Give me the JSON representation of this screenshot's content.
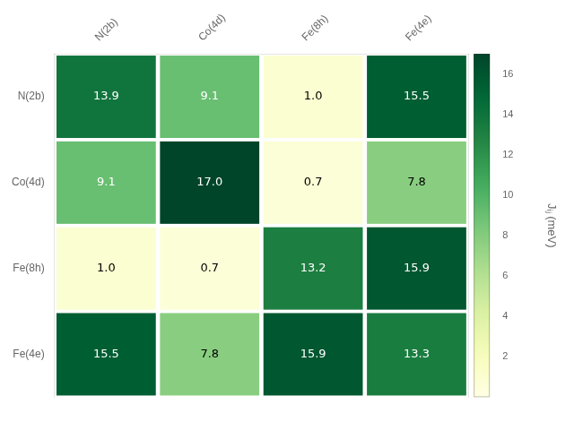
{
  "chart_data": {
    "type": "heatmap",
    "categories": [
      "N(2b)",
      "Co(4d)",
      "Fe(8h)",
      "Fe(4e)"
    ],
    "matrix": [
      [
        13.9,
        9.1,
        1.0,
        15.5
      ],
      [
        9.1,
        17.0,
        0.7,
        7.8
      ],
      [
        1.0,
        0.7,
        13.2,
        15.9
      ],
      [
        15.5,
        7.8,
        15.9,
        13.3
      ]
    ],
    "value_labels": [
      [
        "13.9",
        "9.1",
        "1.0",
        "15.5"
      ],
      [
        "9.1",
        "17.0",
        "0.7",
        "7.8"
      ],
      [
        "1.0",
        "0.7",
        "13.2",
        "15.9"
      ],
      [
        "15.5",
        "7.8",
        "15.9",
        "13.3"
      ]
    ],
    "data_labels": true,
    "colorbar_label": "Jᵢⱼ (meV)",
    "colorbar_lim": [
      0,
      17
    ],
    "colorbar_ticks": [
      2,
      4,
      6,
      8,
      10,
      12,
      14,
      16
    ],
    "grid": false
  }
}
